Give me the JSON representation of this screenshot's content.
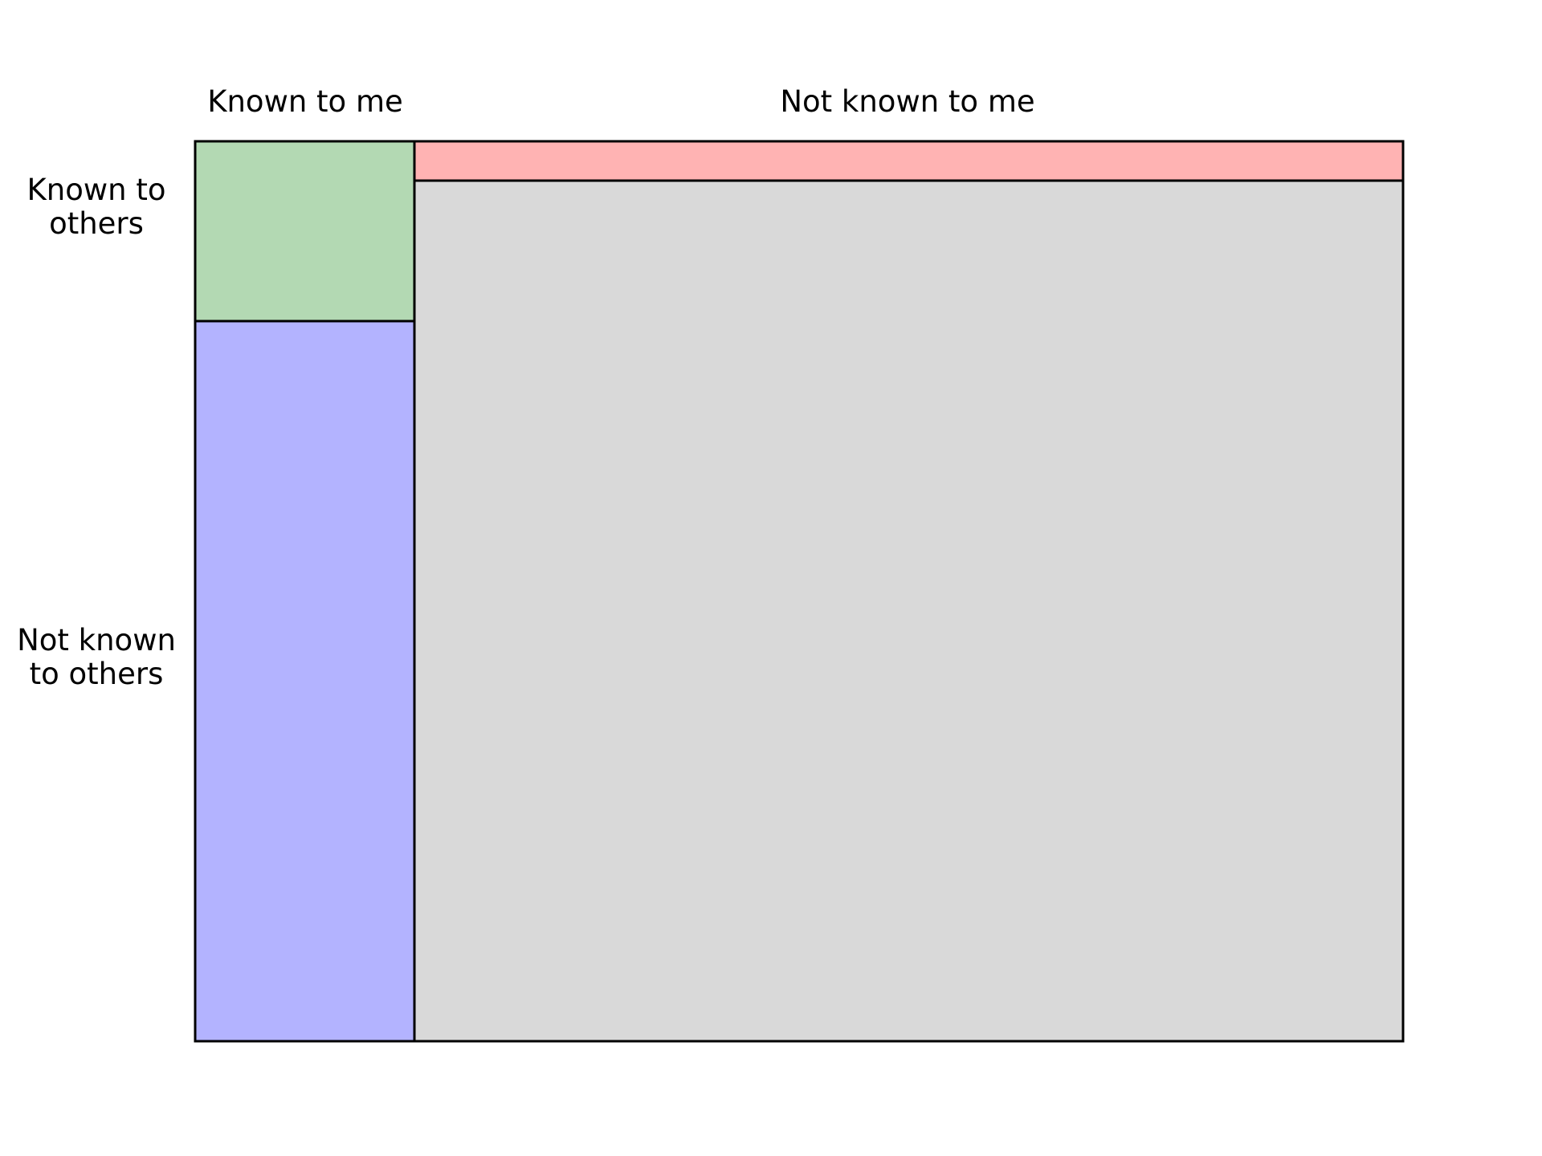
{
  "window": {
    "column_headers": [
      "Known to me",
      "Not known to me"
    ],
    "row_headers": [
      "Known to\nothers",
      "Not known\nto others"
    ]
  },
  "quadrants": [
    {
      "name": "known-known",
      "color": "#b3d9b3"
    },
    {
      "name": "not-known-to-me-known-to-others",
      "color": "#ffb3b3"
    },
    {
      "name": "known-to-me-not-known-to-others",
      "color": "#b3b3ff"
    },
    {
      "name": "not-known-not-known",
      "color": "#d9d9d9"
    }
  ],
  "outline_color": "#000000"
}
